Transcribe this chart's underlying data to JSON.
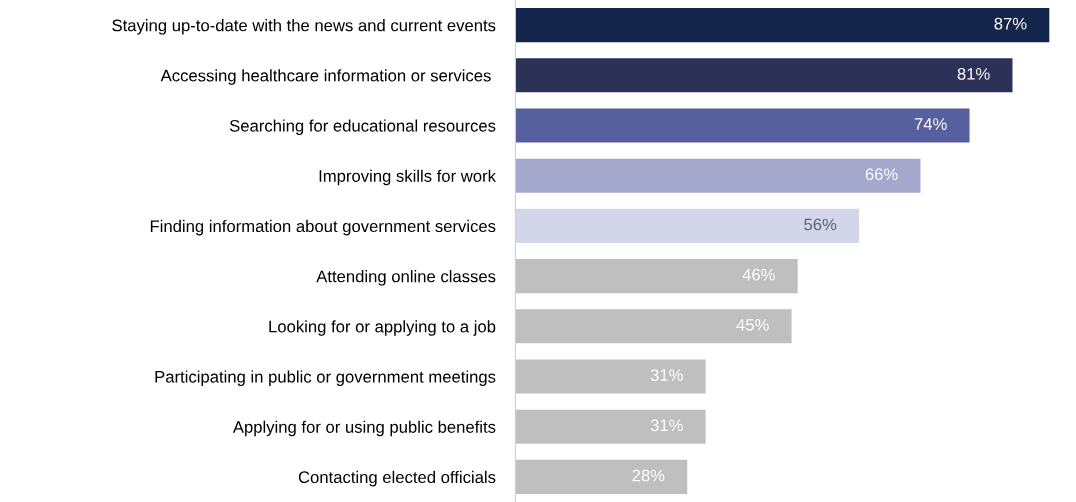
{
  "chart_data": {
    "type": "bar",
    "orientation": "horizontal",
    "categories": [
      "Staying up-to-date with the news and current events",
      "Accessing healthcare information or services ",
      "Searching for educational resources",
      "Improving skills for work",
      "Finding information about government services",
      "Attending online classes",
      "Looking for or applying to a job",
      "Participating in public or government meetings",
      "Applying for or using public benefits",
      "Contacting elected officials"
    ],
    "values": [
      87,
      81,
      74,
      66,
      56,
      46,
      45,
      31,
      31,
      28
    ],
    "value_labels": [
      "87%",
      "81%",
      "74%",
      "66%",
      "56%",
      "46%",
      "45%",
      "31%",
      "31%",
      "28%"
    ],
    "colors": [
      "#13254b",
      "#2b3157",
      "#56609f",
      "#a3a8cc",
      "#d3d6e8",
      "#bfbfbf",
      "#bfbfbf",
      "#bfbfbf",
      "#bfbfbf",
      "#bfbfbf"
    ],
    "tick_labels": "y",
    "grid": false,
    "legend": false
  }
}
